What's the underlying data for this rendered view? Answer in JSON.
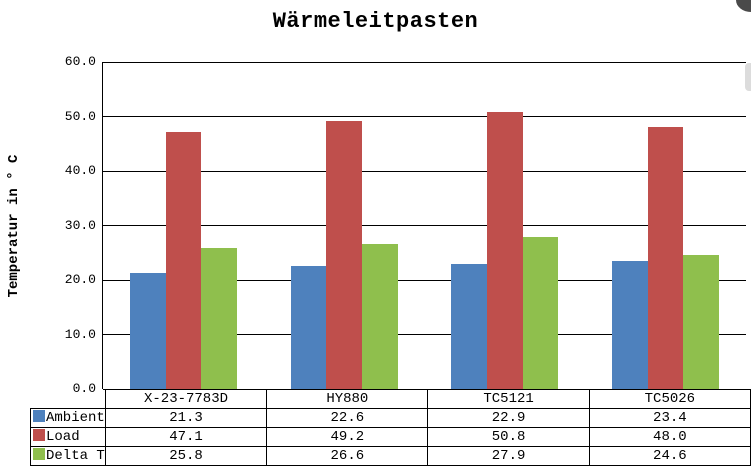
{
  "chart_data": {
    "type": "bar",
    "title": "Wärmeleitpasten",
    "xlabel": "",
    "ylabel": "Temperatur in ° C",
    "categories": [
      "X-23-7783D",
      "HY880",
      "TC5121",
      "TC5026"
    ],
    "series": [
      {
        "name": "Ambient",
        "color": "#4E81BD",
        "values": [
          21.3,
          22.6,
          22.9,
          23.4
        ]
      },
      {
        "name": "Load",
        "color": "#BF4F4C",
        "values": [
          47.1,
          49.2,
          50.8,
          48.0
        ]
      },
      {
        "name": "Delta T",
        "color": "#8FBF4D",
        "values": [
          25.8,
          26.6,
          27.9,
          24.6
        ]
      }
    ],
    "ylim": [
      0,
      60
    ],
    "yticks": [
      {
        "value": 0,
        "label": "0.0"
      },
      {
        "value": 10,
        "label": "10.0"
      },
      {
        "value": 20,
        "label": "20.0"
      },
      {
        "value": 30,
        "label": "30.0"
      },
      {
        "value": 40,
        "label": "40.0"
      },
      {
        "value": 50,
        "label": "50.0"
      },
      {
        "value": 60,
        "label": "60.0"
      }
    ],
    "value_decimals": 1,
    "grid": true,
    "legend_position": "table-left",
    "data_table_shown": true
  }
}
